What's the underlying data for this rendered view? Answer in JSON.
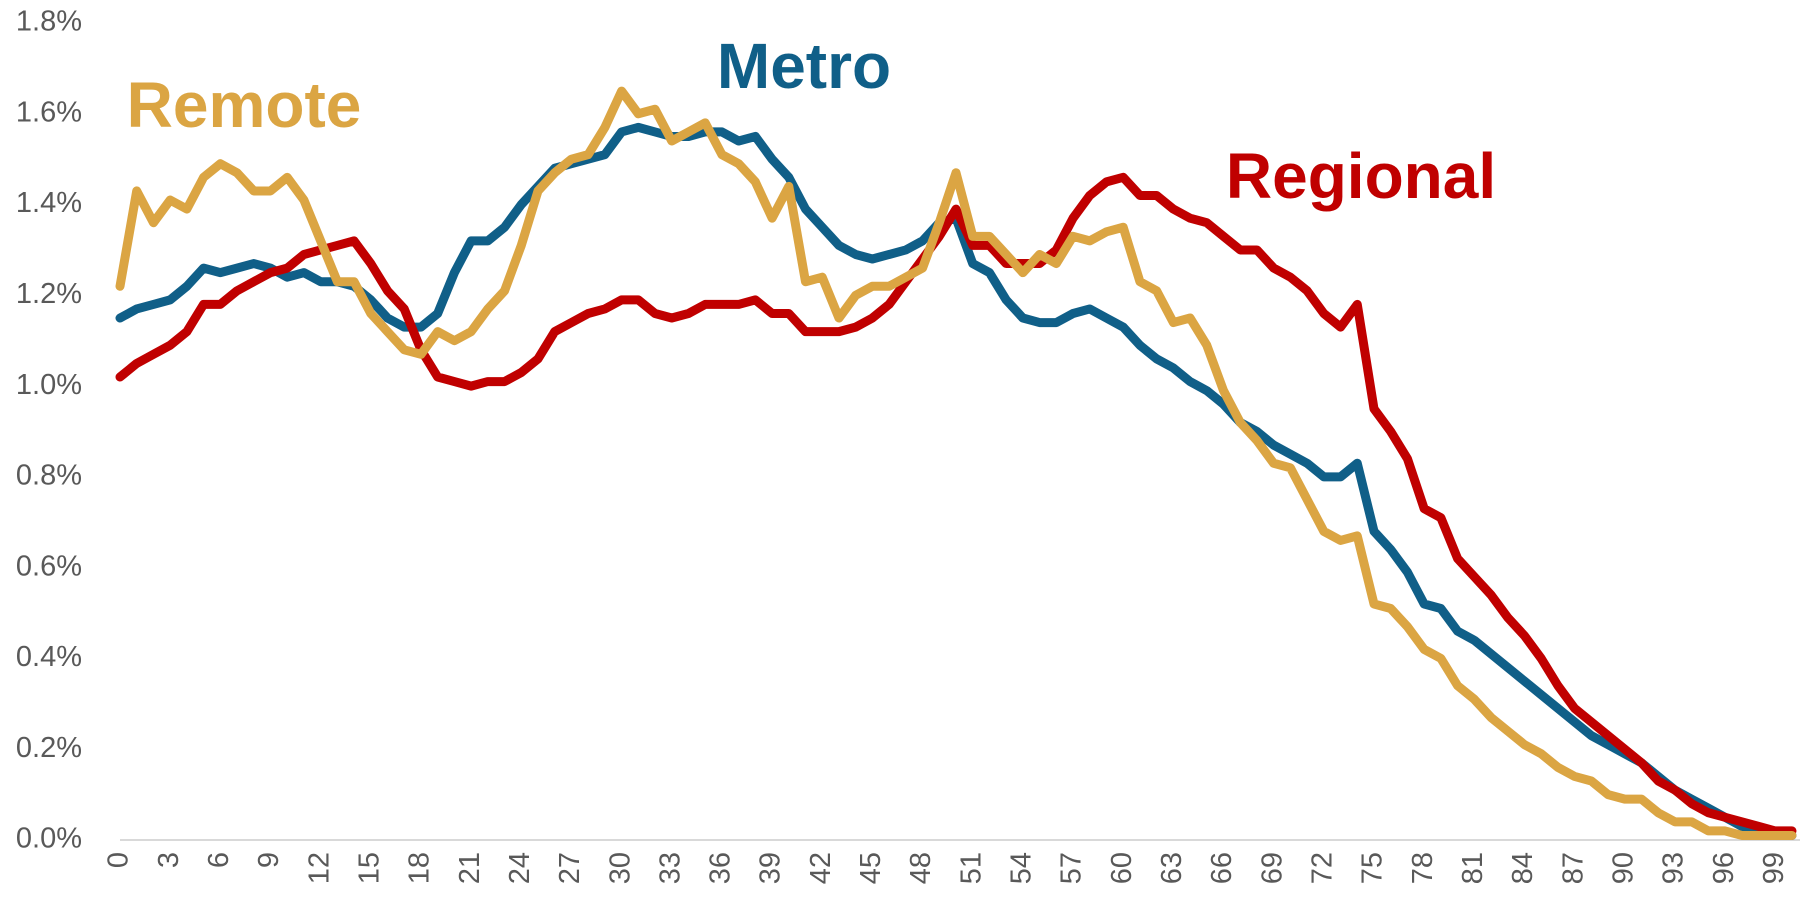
{
  "chart_data": {
    "type": "line",
    "x": [
      0,
      1,
      2,
      3,
      4,
      5,
      6,
      7,
      8,
      9,
      10,
      11,
      12,
      13,
      14,
      15,
      16,
      17,
      18,
      19,
      20,
      21,
      22,
      23,
      24,
      25,
      26,
      27,
      28,
      29,
      30,
      31,
      32,
      33,
      34,
      35,
      36,
      37,
      38,
      39,
      40,
      41,
      42,
      43,
      44,
      45,
      46,
      47,
      48,
      49,
      50,
      51,
      52,
      53,
      54,
      55,
      56,
      57,
      58,
      59,
      60,
      61,
      62,
      63,
      64,
      65,
      66,
      67,
      68,
      69,
      70,
      71,
      72,
      73,
      74,
      75,
      76,
      77,
      78,
      79,
      80,
      81,
      82,
      83,
      84,
      85,
      86,
      87,
      88,
      89,
      90,
      91,
      92,
      93,
      94,
      95,
      96,
      97,
      98,
      99,
      100
    ],
    "xlim": [
      0,
      100
    ],
    "xticks": [
      0,
      3,
      6,
      9,
      12,
      15,
      18,
      21,
      24,
      27,
      30,
      33,
      36,
      39,
      42,
      45,
      48,
      51,
      54,
      57,
      60,
      63,
      66,
      69,
      72,
      75,
      78,
      81,
      84,
      87,
      90,
      93,
      96,
      99
    ],
    "ylim": [
      0,
      1.8
    ],
    "yticks": [
      {
        "value": 0,
        "label": "0.0%"
      },
      {
        "value": 0.2,
        "label": "0.2%"
      },
      {
        "value": 0.4,
        "label": "0.4%"
      },
      {
        "value": 0.6,
        "label": "0.6%"
      },
      {
        "value": 0.8,
        "label": "0.8%"
      },
      {
        "value": 1.0,
        "label": "1.0%"
      },
      {
        "value": 1.2,
        "label": "1.2%"
      },
      {
        "value": 1.4,
        "label": "1.4%"
      },
      {
        "value": 1.6,
        "label": "1.6%"
      },
      {
        "value": 1.8,
        "label": "1.8%"
      }
    ],
    "series": [
      {
        "name": "Metro",
        "color": "#105f88",
        "values": [
          1.15,
          1.17,
          1.18,
          1.19,
          1.22,
          1.26,
          1.25,
          1.26,
          1.27,
          1.26,
          1.24,
          1.25,
          1.23,
          1.23,
          1.22,
          1.19,
          1.15,
          1.13,
          1.13,
          1.16,
          1.25,
          1.32,
          1.32,
          1.35,
          1.4,
          1.44,
          1.48,
          1.49,
          1.5,
          1.51,
          1.56,
          1.57,
          1.56,
          1.55,
          1.55,
          1.56,
          1.56,
          1.54,
          1.55,
          1.5,
          1.46,
          1.39,
          1.35,
          1.31,
          1.29,
          1.28,
          1.29,
          1.3,
          1.32,
          1.36,
          1.37,
          1.27,
          1.25,
          1.19,
          1.15,
          1.14,
          1.14,
          1.16,
          1.17,
          1.15,
          1.13,
          1.09,
          1.06,
          1.04,
          1.01,
          0.99,
          0.96,
          0.92,
          0.9,
          0.87,
          0.85,
          0.83,
          0.8,
          0.8,
          0.83,
          0.68,
          0.64,
          0.59,
          0.52,
          0.51,
          0.46,
          0.44,
          0.41,
          0.38,
          0.35,
          0.32,
          0.29,
          0.26,
          0.23,
          0.21,
          0.19,
          0.17,
          0.14,
          0.11,
          0.09,
          0.07,
          0.05,
          0.03,
          0.02,
          0.01,
          0.01
        ]
      },
      {
        "name": "Regional",
        "color": "#c00000",
        "values": [
          1.02,
          1.05,
          1.07,
          1.09,
          1.12,
          1.18,
          1.18,
          1.21,
          1.23,
          1.25,
          1.26,
          1.29,
          1.3,
          1.31,
          1.32,
          1.27,
          1.21,
          1.17,
          1.08,
          1.02,
          1.01,
          1.0,
          1.01,
          1.01,
          1.03,
          1.06,
          1.12,
          1.14,
          1.16,
          1.17,
          1.19,
          1.19,
          1.16,
          1.15,
          1.16,
          1.18,
          1.18,
          1.18,
          1.19,
          1.16,
          1.16,
          1.12,
          1.12,
          1.12,
          1.13,
          1.15,
          1.18,
          1.23,
          1.28,
          1.33,
          1.39,
          1.31,
          1.31,
          1.27,
          1.27,
          1.27,
          1.3,
          1.37,
          1.42,
          1.45,
          1.46,
          1.42,
          1.42,
          1.39,
          1.37,
          1.36,
          1.33,
          1.3,
          1.3,
          1.26,
          1.24,
          1.21,
          1.16,
          1.13,
          1.18,
          0.95,
          0.9,
          0.84,
          0.73,
          0.71,
          0.62,
          0.58,
          0.54,
          0.49,
          0.45,
          0.4,
          0.34,
          0.29,
          0.26,
          0.23,
          0.2,
          0.17,
          0.13,
          0.11,
          0.08,
          0.06,
          0.05,
          0.04,
          0.03,
          0.02,
          0.02
        ]
      },
      {
        "name": "Remote",
        "color": "#dba543",
        "values": [
          1.22,
          1.43,
          1.36,
          1.41,
          1.39,
          1.46,
          1.49,
          1.47,
          1.43,
          1.43,
          1.46,
          1.41,
          1.32,
          1.23,
          1.23,
          1.16,
          1.12,
          1.08,
          1.07,
          1.12,
          1.1,
          1.12,
          1.17,
          1.21,
          1.31,
          1.43,
          1.47,
          1.5,
          1.51,
          1.57,
          1.65,
          1.6,
          1.61,
          1.54,
          1.56,
          1.58,
          1.51,
          1.49,
          1.45,
          1.37,
          1.44,
          1.23,
          1.24,
          1.15,
          1.2,
          1.22,
          1.22,
          1.24,
          1.26,
          1.36,
          1.47,
          1.33,
          1.33,
          1.29,
          1.25,
          1.29,
          1.27,
          1.33,
          1.32,
          1.34,
          1.35,
          1.23,
          1.21,
          1.14,
          1.15,
          1.09,
          0.99,
          0.92,
          0.88,
          0.83,
          0.82,
          0.75,
          0.68,
          0.66,
          0.67,
          0.52,
          0.51,
          0.47,
          0.42,
          0.4,
          0.34,
          0.31,
          0.27,
          0.24,
          0.21,
          0.19,
          0.16,
          0.14,
          0.13,
          0.1,
          0.09,
          0.09,
          0.06,
          0.04,
          0.04,
          0.02,
          0.02,
          0.01,
          0.01,
          0.01,
          0.01
        ]
      }
    ]
  }
}
